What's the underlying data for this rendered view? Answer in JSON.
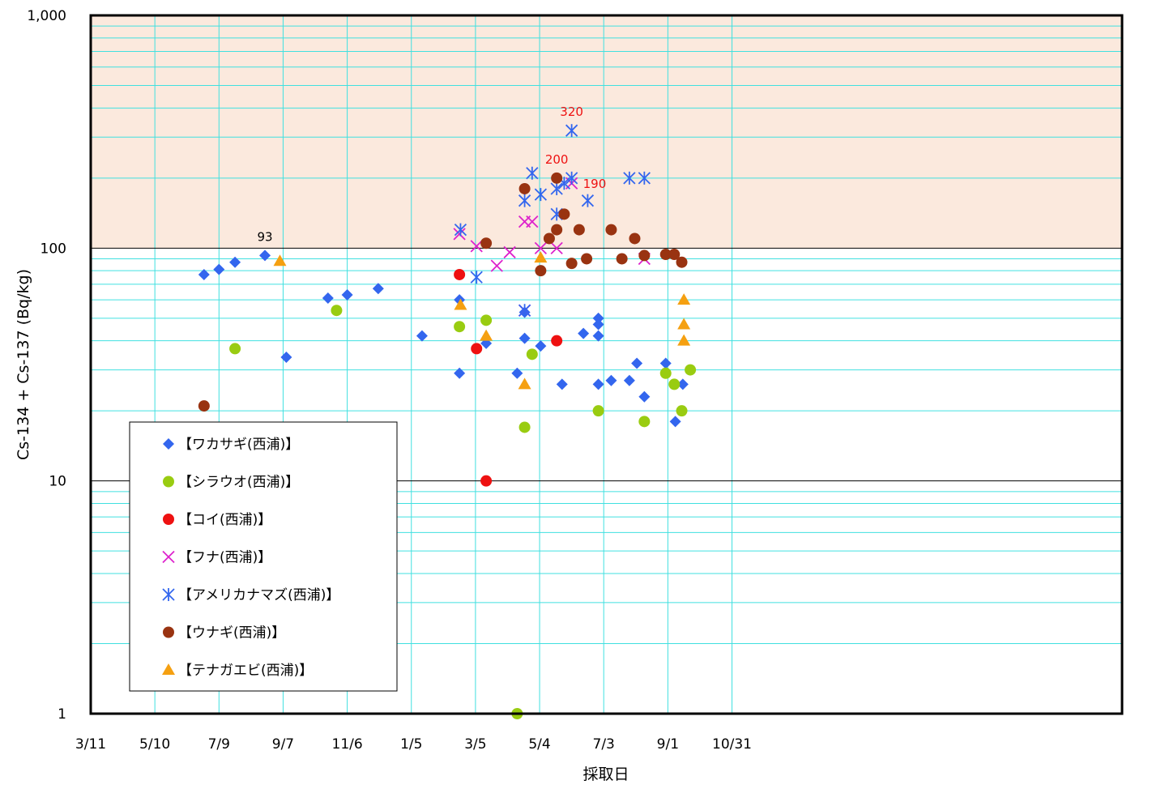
{
  "chart_data": {
    "type": "scatter",
    "xlabel": "採取日",
    "ylabel": "Cs-134 + Cs-137 (Bq/kg)",
    "y_scale": "log",
    "ylim": [
      1,
      1000
    ],
    "xlim": [
      "2011-03-11",
      "2013-10-31"
    ],
    "x_ticks": [
      {
        "label": "3/11",
        "date": "2011-03-11"
      },
      {
        "label": "5/10",
        "date": "2011-05-10"
      },
      {
        "label": "7/9",
        "date": "2011-07-09"
      },
      {
        "label": "9/7",
        "date": "2011-09-07"
      },
      {
        "label": "11/6",
        "date": "2011-11-06"
      },
      {
        "label": "1/5",
        "date": "2012-01-05"
      },
      {
        "label": "3/5",
        "date": "2012-03-05"
      },
      {
        "label": "5/4",
        "date": "2012-05-04"
      },
      {
        "label": "7/3",
        "date": "2012-07-03"
      },
      {
        "label": "9/1",
        "date": "2012-09-01"
      },
      {
        "label": "10/31",
        "date": "2012-10-31"
      }
    ],
    "y_ticks": [
      {
        "label": "1",
        "value": 1
      },
      {
        "label": "10",
        "value": 10
      },
      {
        "label": "100",
        "value": 100
      },
      {
        "label": "1,000",
        "value": 1000
      }
    ],
    "grid": true,
    "shaded_band": {
      "from": 100,
      "to": 1000,
      "color": "#fbe9dd"
    },
    "legend_position": "bottom-left",
    "colors": {
      "frame": "#000000",
      "grid": "#40e0e0",
      "major_grid": "#000000"
    },
    "series": [
      {
        "name": "【ワカサギ(西浦)】",
        "marker": "diamond",
        "color": "#3366ee",
        "points": [
          [
            "2011-06-25",
            77
          ],
          [
            "2011-07-09",
            81
          ],
          [
            "2011-07-24",
            87
          ],
          [
            "2011-08-21",
            93
          ],
          [
            "2011-09-10",
            34
          ],
          [
            "2011-10-19",
            61
          ],
          [
            "2011-11-06",
            63
          ],
          [
            "2011-12-05",
            67
          ],
          [
            "2012-01-15",
            42
          ],
          [
            "2012-02-19",
            60
          ],
          [
            "2012-02-19",
            29
          ],
          [
            "2012-03-15",
            39
          ],
          [
            "2012-04-13",
            29
          ],
          [
            "2012-04-20",
            41
          ],
          [
            "2012-04-20",
            53
          ],
          [
            "2012-05-05",
            38
          ],
          [
            "2012-05-25",
            26
          ],
          [
            "2012-06-14",
            43
          ],
          [
            "2012-06-28",
            50
          ],
          [
            "2012-06-28",
            47
          ],
          [
            "2012-06-28",
            42
          ],
          [
            "2012-06-28",
            26
          ],
          [
            "2012-07-10",
            27
          ],
          [
            "2012-07-27",
            27
          ],
          [
            "2012-08-03",
            32
          ],
          [
            "2012-08-10",
            23
          ],
          [
            "2012-08-30",
            32
          ],
          [
            "2012-09-08",
            18
          ],
          [
            "2012-09-15",
            26
          ]
        ]
      },
      {
        "name": "【シラウオ(西浦)】",
        "marker": "circle",
        "color": "#99cc11",
        "points": [
          [
            "2011-07-24",
            37
          ],
          [
            "2011-10-27",
            54
          ],
          [
            "2012-02-19",
            46
          ],
          [
            "2012-03-15",
            49
          ],
          [
            "2012-04-13",
            1
          ],
          [
            "2012-04-20",
            17
          ],
          [
            "2012-04-27",
            35
          ],
          [
            "2012-06-28",
            20
          ],
          [
            "2012-08-10",
            18
          ],
          [
            "2012-08-30",
            29
          ],
          [
            "2012-09-07",
            26
          ],
          [
            "2012-09-14",
            20
          ],
          [
            "2012-09-22",
            30
          ]
        ]
      },
      {
        "name": "【コイ(西浦)】",
        "marker": "circle",
        "color": "#ee1111",
        "points": [
          [
            "2012-02-19",
            77
          ],
          [
            "2012-03-06",
            37
          ],
          [
            "2012-03-15",
            10
          ],
          [
            "2012-05-20",
            40
          ]
        ]
      },
      {
        "name": "【フナ(西浦)】",
        "marker": "x",
        "color": "#dd22cc",
        "points": [
          [
            "2012-02-19",
            115
          ],
          [
            "2012-03-06",
            102
          ],
          [
            "2012-03-25",
            84
          ],
          [
            "2012-04-06",
            96
          ],
          [
            "2012-04-20",
            130
          ],
          [
            "2012-04-27",
            130
          ],
          [
            "2012-04-20",
            54
          ],
          [
            "2012-05-05",
            100
          ],
          [
            "2012-05-20",
            100
          ],
          [
            "2012-06-03",
            190
          ],
          [
            "2012-08-10",
            90
          ]
        ]
      },
      {
        "name": "【アメリカナマズ(西浦)】",
        "marker": "asterisk",
        "color": "#3366ee",
        "points": [
          [
            "2012-02-20",
            120
          ],
          [
            "2012-03-06",
            75
          ],
          [
            "2012-04-20",
            160
          ],
          [
            "2012-04-27",
            210
          ],
          [
            "2012-05-05",
            170
          ],
          [
            "2012-05-20",
            140
          ],
          [
            "2012-05-20",
            180
          ],
          [
            "2012-05-27",
            190
          ],
          [
            "2012-06-03",
            320
          ],
          [
            "2012-06-03",
            200
          ],
          [
            "2012-06-18",
            160
          ],
          [
            "2012-08-10",
            200
          ],
          [
            "2012-07-27",
            200
          ],
          [
            "2012-04-20",
            54
          ]
        ]
      },
      {
        "name": "【ウナギ(西浦)】",
        "marker": "circle",
        "color": "#993311",
        "points": [
          [
            "2011-06-25",
            21
          ],
          [
            "2012-03-15",
            105
          ],
          [
            "2012-04-20",
            180
          ],
          [
            "2012-05-05",
            80
          ],
          [
            "2012-05-13",
            110
          ],
          [
            "2012-05-20",
            120
          ],
          [
            "2012-05-20",
            200
          ],
          [
            "2012-05-27",
            140
          ],
          [
            "2012-06-03",
            86
          ],
          [
            "2012-06-10",
            120
          ],
          [
            "2012-06-17",
            90
          ],
          [
            "2012-07-10",
            120
          ],
          [
            "2012-07-20",
            90
          ],
          [
            "2012-08-01",
            110
          ],
          [
            "2012-08-10",
            93
          ],
          [
            "2012-08-30",
            94
          ],
          [
            "2012-09-07",
            94
          ],
          [
            "2012-09-14",
            87
          ]
        ]
      },
      {
        "name": "【テナガエビ(西浦)】",
        "marker": "triangle",
        "color": "#f5a011",
        "points": [
          [
            "2011-09-04",
            88
          ],
          [
            "2012-02-20",
            57
          ],
          [
            "2012-03-15",
            42
          ],
          [
            "2012-04-20",
            26
          ],
          [
            "2012-05-05",
            91
          ],
          [
            "2012-09-16",
            60
          ],
          [
            "2012-09-16",
            47
          ],
          [
            "2012-09-16",
            40
          ]
        ]
      }
    ],
    "annotations": [
      {
        "text": "93",
        "x": "2011-08-21",
        "y": 93,
        "color": "#000000"
      },
      {
        "text": "320",
        "x": "2012-06-03",
        "y": 320,
        "color": "#ee1111"
      },
      {
        "text": "200",
        "x": "2012-05-20",
        "y": 200,
        "color": "#ee1111"
      },
      {
        "text": "190",
        "x": "2012-06-03",
        "y": 190,
        "color": "#ee1111"
      }
    ]
  }
}
